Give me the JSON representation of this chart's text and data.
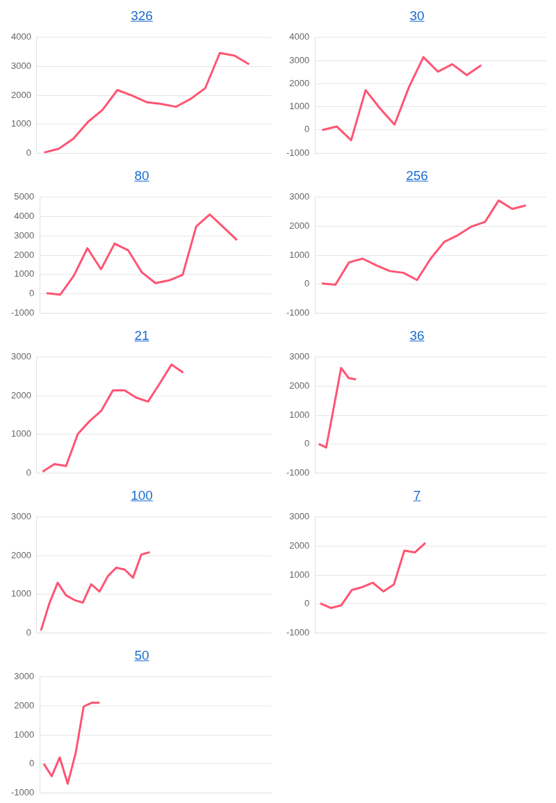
{
  "chart_data": [
    {
      "type": "line",
      "title": "326",
      "categories": [
        null,
        null,
        null,
        null,
        null,
        null,
        null,
        null,
        null,
        null,
        null,
        null,
        null,
        null,
        null,
        null
      ],
      "grid": "y",
      "tick_labels": "y",
      "ylim": [
        0,
        4000
      ],
      "yticks": [
        0,
        1000,
        2000,
        3000,
        4000
      ],
      "series": [
        {
          "color": "#ff5473",
          "values": [
            20,
            150,
            500,
            1080,
            1500,
            2180,
            1990,
            1760,
            1700,
            1600,
            1870,
            2240,
            3460,
            3370,
            3070,
            null
          ]
        }
      ]
    },
    {
      "type": "line",
      "title": "30",
      "categories": [
        null,
        null,
        null,
        null,
        null,
        null,
        null,
        null,
        null,
        null,
        null,
        null,
        null,
        null,
        null,
        null
      ],
      "grid": "y",
      "tick_labels": "y",
      "ylim": [
        -1000,
        4000
      ],
      "yticks": [
        -1000,
        0,
        1000,
        2000,
        3000,
        4000
      ],
      "series": [
        {
          "color": "#ff5473",
          "values": [
            0,
            150,
            -440,
            1720,
            930,
            230,
            1850,
            3150,
            2520,
            2840,
            2370,
            2800,
            null,
            null,
            null,
            null
          ]
        }
      ]
    },
    {
      "type": "line",
      "title": "80",
      "categories": [
        null,
        null,
        null,
        null,
        null,
        null,
        null,
        null,
        null,
        null,
        null,
        null,
        null,
        null,
        null,
        null,
        null
      ],
      "grid": "y",
      "tick_labels": "y",
      "ylim": [
        -1000,
        5000
      ],
      "yticks": [
        -1000,
        0,
        1000,
        2000,
        3000,
        4000,
        5000
      ],
      "series": [
        {
          "color": "#ff5473",
          "values": [
            30,
            -50,
            930,
            2360,
            1270,
            2600,
            2250,
            1110,
            550,
            690,
            980,
            3490,
            4110,
            3450,
            2780,
            null,
            null
          ]
        }
      ]
    },
    {
      "type": "line",
      "title": "256",
      "categories": [
        null,
        null,
        null,
        null,
        null,
        null,
        null,
        null,
        null,
        null,
        null,
        null,
        null,
        null,
        null,
        null,
        null
      ],
      "grid": "y",
      "tick_labels": "y",
      "ylim": [
        -1000,
        3000
      ],
      "yticks": [
        -1000,
        0,
        1000,
        2000,
        3000
      ],
      "series": [
        {
          "color": "#ff5473",
          "values": [
            20,
            -20,
            750,
            880,
            650,
            450,
            390,
            140,
            880,
            1460,
            1690,
            1990,
            2150,
            2890,
            2600,
            2720,
            null
          ]
        }
      ]
    },
    {
      "type": "line",
      "title": "21",
      "categories": [
        null,
        null,
        null,
        null,
        null,
        null,
        null,
        null,
        null,
        null,
        null,
        null,
        null,
        null,
        null,
        null,
        null,
        null,
        null,
        null
      ],
      "grid": "y",
      "tick_labels": "y",
      "ylim": [
        0,
        3000
      ],
      "yticks": [
        0,
        1000,
        2000,
        3000
      ],
      "series": [
        {
          "color": "#ff5473",
          "values": [
            30,
            230,
            180,
            1010,
            1340,
            1610,
            2140,
            2140,
            1950,
            1850,
            2320,
            2810,
            2600,
            null,
            null,
            null,
            null,
            null,
            null,
            null
          ]
        }
      ]
    },
    {
      "type": "line",
      "title": "36",
      "categories": [
        null,
        null,
        null,
        null,
        null,
        null,
        null,
        null,
        null,
        null,
        null,
        null,
        null,
        null,
        null,
        null,
        null,
        null,
        null,
        null,
        null,
        null,
        null,
        null,
        null,
        null,
        null,
        null,
        null,
        null,
        null
      ],
      "grid": "y",
      "tick_labels": "y",
      "ylim": [
        -1000,
        3000
      ],
      "yticks": [
        -1000,
        0,
        1000,
        2000,
        3000
      ],
      "series": [
        {
          "color": "#ff5473",
          "values": [
            0,
            -120,
            1240,
            2630,
            2280,
            2230,
            null,
            null,
            null,
            null,
            null,
            null,
            null,
            null,
            null,
            null,
            null,
            null,
            null,
            null,
            null,
            null,
            null,
            null,
            null,
            null,
            null,
            null,
            null,
            null,
            null
          ]
        }
      ]
    },
    {
      "type": "line",
      "title": "100",
      "categories": [
        null,
        null,
        null,
        null,
        null,
        null,
        null,
        null,
        null,
        null,
        null,
        null,
        null,
        null,
        null,
        null,
        null,
        null,
        null,
        null,
        null,
        null,
        null,
        null,
        null,
        null,
        null,
        null
      ],
      "grid": "y",
      "tick_labels": "y",
      "ylim": [
        0,
        3000
      ],
      "yticks": [
        0,
        1000,
        2000,
        3000
      ],
      "series": [
        {
          "color": "#ff5473",
          "values": [
            60,
            760,
            1300,
            970,
            850,
            780,
            1260,
            1070,
            1470,
            1690,
            1640,
            1430,
            2030,
            2090,
            null,
            null,
            null,
            null,
            null,
            null,
            null,
            null,
            null,
            null,
            null,
            null,
            null,
            null
          ]
        }
      ]
    },
    {
      "type": "line",
      "title": "7",
      "categories": [
        null,
        null,
        null,
        null,
        null,
        null,
        null,
        null,
        null,
        null,
        null,
        null,
        null,
        null,
        null,
        null,
        null,
        null,
        null,
        null,
        null,
        null
      ],
      "grid": "y",
      "tick_labels": "y",
      "ylim": [
        -1000,
        3000
      ],
      "yticks": [
        -1000,
        0,
        1000,
        2000,
        3000
      ],
      "series": [
        {
          "color": "#ff5473",
          "values": [
            20,
            -140,
            -50,
            480,
            580,
            730,
            430,
            670,
            1840,
            1780,
            2110,
            null,
            null,
            null,
            null,
            null,
            null,
            null,
            null,
            null,
            null,
            null
          ]
        }
      ]
    },
    {
      "type": "line",
      "title": "50",
      "categories": [
        null,
        null,
        null,
        null,
        null,
        null,
        null,
        null,
        null,
        null,
        null,
        null,
        null,
        null,
        null,
        null,
        null,
        null,
        null,
        null,
        null,
        null,
        null,
        null,
        null,
        null,
        null,
        null,
        null
      ],
      "grid": "y",
      "tick_labels": "y",
      "ylim": [
        -1000,
        3000
      ],
      "yticks": [
        -1000,
        0,
        1000,
        2000,
        3000
      ],
      "series": [
        {
          "color": "#ff5473",
          "values": [
            0,
            -430,
            220,
            -690,
            370,
            1980,
            2110,
            2110,
            null,
            null,
            null,
            null,
            null,
            null,
            null,
            null,
            null,
            null,
            null,
            null,
            null,
            null,
            null,
            null,
            null,
            null,
            null,
            null,
            null
          ]
        }
      ]
    }
  ]
}
